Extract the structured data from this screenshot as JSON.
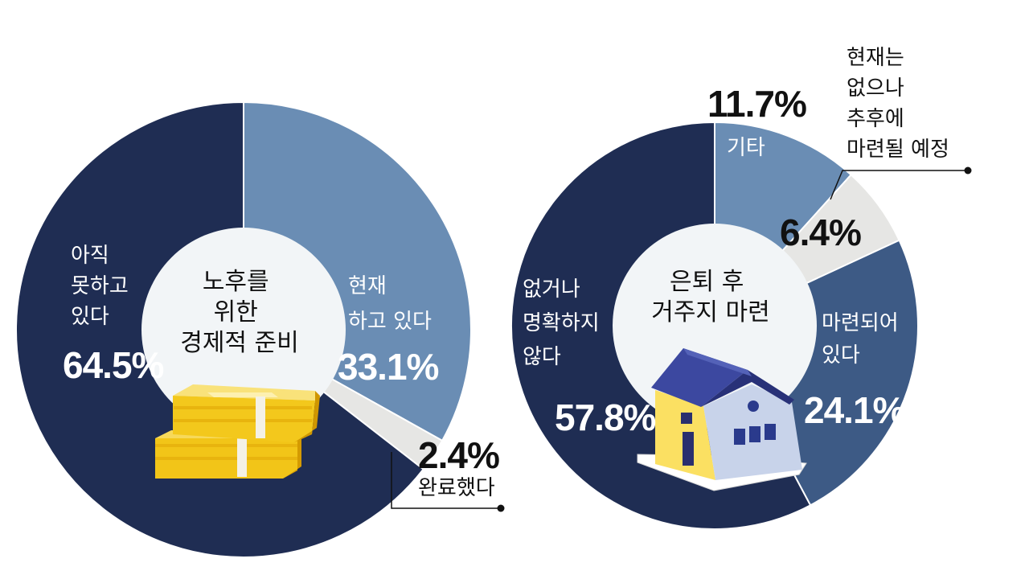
{
  "colors": {
    "dark_navy": "#1f2d53",
    "steel_blue": "#6a8db4",
    "mid_blue": "#3d5a85",
    "light_gray": "#e6e6e4",
    "center": "#f2f5f7",
    "text_dark": "#111111",
    "text_light": "#ffffff"
  },
  "chart_data": [
    {
      "type": "pie",
      "center_label": [
        "노후를",
        "위한",
        "경제적 준비"
      ],
      "slices": [
        {
          "label": [
            "현재",
            "하고 있다"
          ],
          "value": 33.1,
          "value_label": "33.1%",
          "color": "#6a8db4"
        },
        {
          "label": [
            "완료했다"
          ],
          "value": 2.4,
          "value_label": "2.4%",
          "color": "#e6e6e4"
        },
        {
          "label": [
            "아직",
            "못하고",
            "있다"
          ],
          "value": 64.5,
          "value_label": "64.5%",
          "color": "#1f2d53"
        }
      ],
      "icon": "money-stack-icon"
    },
    {
      "type": "pie",
      "center_label": [
        "은퇴 후",
        "거주지 마련"
      ],
      "slices": [
        {
          "label": [
            "기타"
          ],
          "value": 11.7,
          "value_label": "11.7%",
          "color": "#6a8db4"
        },
        {
          "label": [
            "현재는",
            "없으나",
            "추후에",
            "마련될 예정"
          ],
          "value": 6.4,
          "value_label": "6.4%",
          "color": "#e6e6e4"
        },
        {
          "label": [
            "마련되어",
            "있다"
          ],
          "value": 24.1,
          "value_label": "24.1%",
          "color": "#3d5a85"
        },
        {
          "label": [
            "없거나",
            "명확하지",
            "않다"
          ],
          "value": 57.8,
          "value_label": "57.8%",
          "color": "#1f2d53"
        }
      ],
      "icon": "house-icon"
    }
  ]
}
